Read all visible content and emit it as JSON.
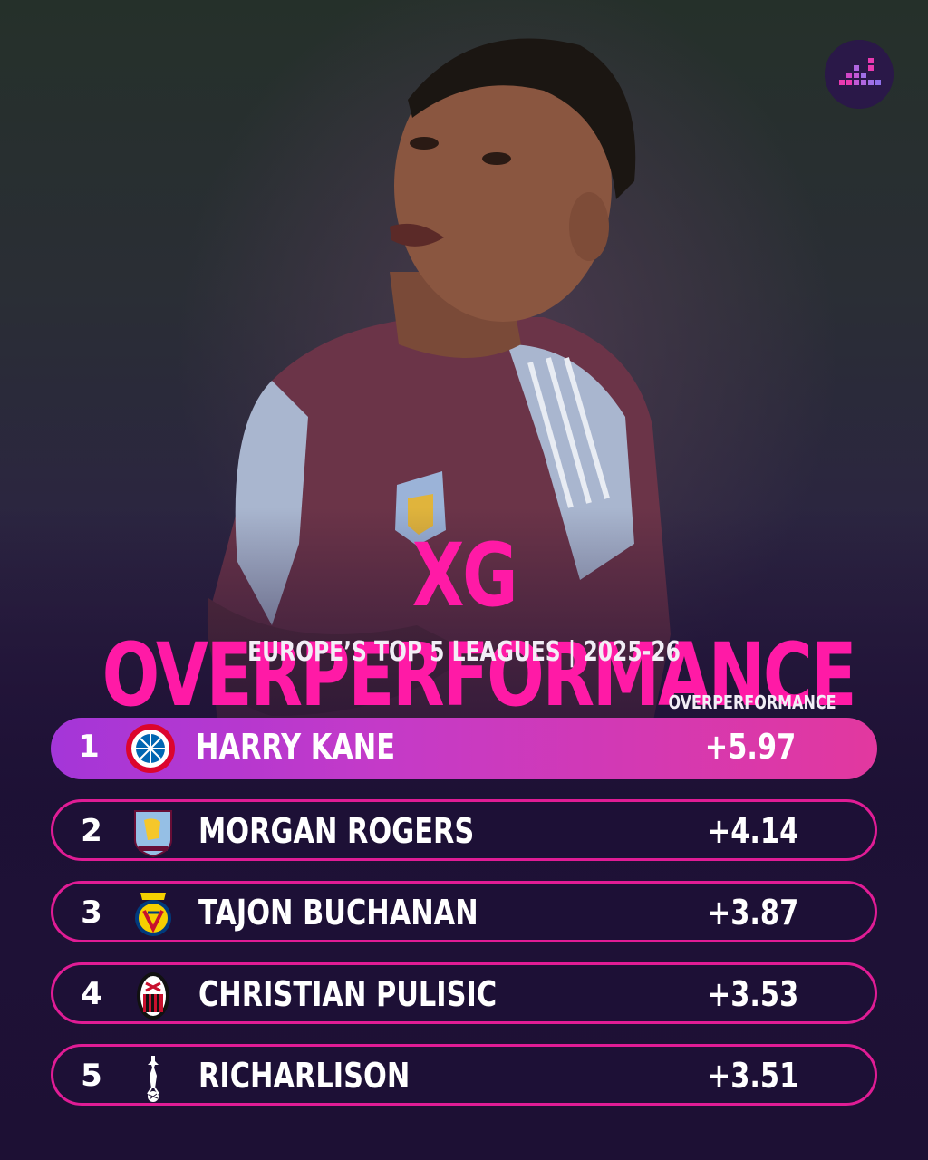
{
  "header": {
    "title": "XG OVERPERFORMANCE",
    "subtitle": "EUROPE’S TOP 5 LEAGUES | 2025-26",
    "column_label": "OVERPERFORMANCE"
  },
  "colors": {
    "accent": "#ff1aa6",
    "highlight_start": "#a436d8",
    "highlight_end": "#e2389f",
    "background": "#1d1034"
  },
  "rows": [
    {
      "rank": "1",
      "player": "HARRY KANE",
      "value": "+5.97",
      "crest_icon": "bayern-munich-crest-icon"
    },
    {
      "rank": "2",
      "player": "MORGAN ROGERS",
      "value": "+4.14",
      "crest_icon": "aston-villa-crest-icon"
    },
    {
      "rank": "3",
      "player": "TAJON BUCHANAN",
      "value": "+3.87",
      "crest_icon": "villarreal-crest-icon"
    },
    {
      "rank": "4",
      "player": "CHRISTIAN PULISIC",
      "value": "+3.53",
      "crest_icon": "ac-milan-crest-icon"
    },
    {
      "rank": "5",
      "player": "RICHARLISON",
      "value": "+3.51",
      "crest_icon": "tottenham-crest-icon"
    }
  ]
}
